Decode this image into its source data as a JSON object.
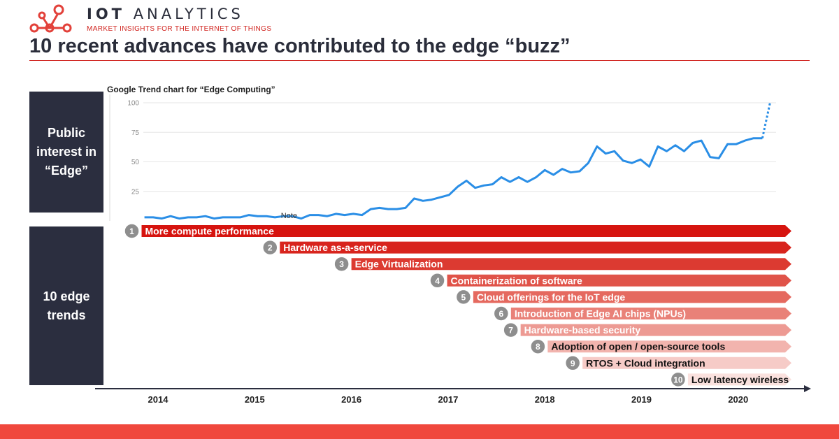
{
  "header": {
    "brand_prefix": "IOT",
    "brand_suffix": "ANALYTICS",
    "tagline": "MARKET INSIGHTS FOR THE INTERNET OF THINGS",
    "title": "10 recent advances have contributed to the edge “buzz”",
    "logo_icon": "network-nodes-icon"
  },
  "side_boxes": {
    "top": [
      "Public",
      "interest in",
      "“Edge”"
    ],
    "bottom": [
      "10 edge",
      "trends"
    ]
  },
  "colors": {
    "brand_red": "#d0211c",
    "navy": "#2b2e3f",
    "line": "#2a8ee6",
    "footer": "#f0483d"
  },
  "chart_data": {
    "type": "line",
    "title": "Google Trend chart for “Edge Computing”",
    "xlabel": "",
    "ylabel": "",
    "ylim": [
      0,
      100
    ],
    "yticks": [
      25,
      50,
      75,
      100
    ],
    "x_tick_labels": [
      "2014",
      "2015",
      "2016",
      "2017",
      "2018",
      "2019",
      "2020"
    ],
    "xlim": [
      2013.86,
      2020.5
    ],
    "annotation": {
      "text": "Note",
      "x": 2015.3,
      "y": 3
    },
    "series": [
      {
        "name": "Edge Computing",
        "x": [
          2013.86,
          2013.95,
          2014.04,
          2014.13,
          2014.22,
          2014.31,
          2014.4,
          2014.49,
          2014.58,
          2014.67,
          2014.76,
          2014.85,
          2014.94,
          2015.03,
          2015.12,
          2015.21,
          2015.3,
          2015.39,
          2015.48,
          2015.57,
          2015.66,
          2015.75,
          2015.84,
          2015.93,
          2016.02,
          2016.11,
          2016.2,
          2016.29,
          2016.38,
          2016.47,
          2016.56,
          2016.65,
          2016.74,
          2016.83,
          2016.92,
          2017.01,
          2017.1,
          2017.19,
          2017.28,
          2017.37,
          2017.46,
          2017.55,
          2017.64,
          2017.73,
          2017.82,
          2017.91,
          2018.0,
          2018.09,
          2018.18,
          2018.27,
          2018.36,
          2018.45,
          2018.54,
          2018.63,
          2018.72,
          2018.81,
          2018.9,
          2018.99,
          2019.08,
          2019.17,
          2019.26,
          2019.35,
          2019.44,
          2019.53,
          2019.62,
          2019.71,
          2019.8,
          2019.89,
          2019.98,
          2020.07,
          2020.16,
          2020.25
        ],
        "values": [
          3,
          3,
          2,
          4,
          2,
          3,
          3,
          4,
          2,
          3,
          3,
          3,
          5,
          4,
          4,
          3,
          4,
          4,
          2,
          5,
          5,
          4,
          6,
          5,
          6,
          5,
          10,
          11,
          10,
          10,
          11,
          19,
          17,
          18,
          20,
          22,
          29,
          34,
          28,
          30,
          31,
          37,
          33,
          37,
          33,
          37,
          43,
          39,
          44,
          41,
          42,
          49,
          63,
          57,
          59,
          51,
          49,
          52,
          46,
          63,
          59,
          64,
          59,
          66,
          68,
          54,
          53,
          65,
          65,
          68,
          70,
          70
        ]
      },
      {
        "name": "Edge Computing (projected)",
        "style": "dotted",
        "x": [
          2020.25,
          2020.33
        ],
        "values": [
          70,
          100
        ]
      }
    ]
  },
  "trends": [
    {
      "num": "1",
      "label": "More compute performance",
      "start": 2013.7,
      "color": "#d6140f",
      "text_color": "#ffffff"
    },
    {
      "num": "2",
      "label": "Hardware as-a-service",
      "start": 2015.13,
      "color": "#d8241d",
      "text_color": "#ffffff"
    },
    {
      "num": "3",
      "label": "Edge Virtualization",
      "start": 2015.87,
      "color": "#dc3a31",
      "text_color": "#ffffff"
    },
    {
      "num": "4",
      "label": "Containerization of software",
      "start": 2016.86,
      "color": "#e05349",
      "text_color": "#ffffff"
    },
    {
      "num": "5",
      "label": "Cloud offerings for the IoT edge",
      "start": 2017.13,
      "color": "#e5695f",
      "text_color": "#ffffff"
    },
    {
      "num": "6",
      "label": "Introduction of Edge AI chips (NPUs)",
      "start": 2017.52,
      "color": "#e98178",
      "text_color": "#ffffff"
    },
    {
      "num": "7",
      "label": "Hardware-based security",
      "start": 2017.62,
      "color": "#ed9a93",
      "text_color": "#ffffff"
    },
    {
      "num": "8",
      "label": "Adoption of open / open-source tools",
      "start": 2017.9,
      "color": "#f2b4ae",
      "text_color": "#111111"
    },
    {
      "num": "9",
      "label": "RTOS + Cloud integration",
      "start": 2018.26,
      "color": "#f6cbc7",
      "text_color": "#111111"
    },
    {
      "num": "10",
      "label": "Low latency wireless",
      "start": 2019.35,
      "color": "#fae1de",
      "text_color": "#111111"
    }
  ]
}
